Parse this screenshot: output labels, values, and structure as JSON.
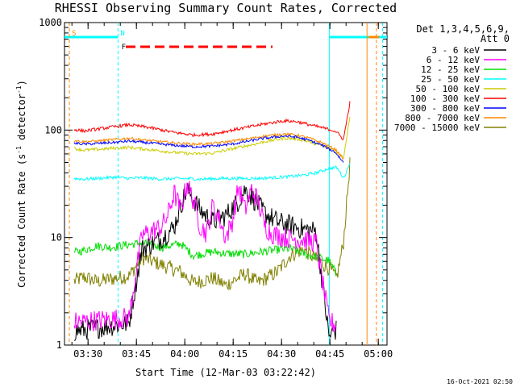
{
  "chart_data": {
    "type": "line",
    "title": "RHESSI Observing Summary Count Rates, Corrected",
    "xlabel": "Start Time (12-Mar-03 03:22:42)",
    "ylabel_main": "Corrected Count Rate (s",
    "ylabel_sup1": "-1",
    "ylabel_mid": " detector",
    "ylabel_sup2": "-1",
    "ylabel_end": ")",
    "x_unit": "minutes since 03:22:42",
    "xlim": [
      0,
      100
    ],
    "ylim": [
      1,
      1000
    ],
    "yscale": "log",
    "x_ticks": [
      {
        "x": 7.3,
        "label": "03:30"
      },
      {
        "x": 22.3,
        "label": "03:45"
      },
      {
        "x": 37.3,
        "label": "04:00"
      },
      {
        "x": 52.3,
        "label": "04:15"
      },
      {
        "x": 67.3,
        "label": "04:30"
      },
      {
        "x": 82.3,
        "label": "04:45"
      },
      {
        "x": 97.3,
        "label": "05:00"
      }
    ],
    "y_ticks": [
      {
        "y": 1,
        "label": "1"
      },
      {
        "y": 10,
        "label": "10"
      },
      {
        "y": 100,
        "label": "100"
      },
      {
        "y": 1000,
        "label": "1000"
      }
    ],
    "legend": {
      "header1": "Det 1,3,4,5,6,9,",
      "header2": "Att 0",
      "placement": "right"
    },
    "series": [
      {
        "name": "3 - 6 keV",
        "color": "#000000",
        "x": [
          0,
          20,
          24,
          30,
          34,
          36,
          38,
          40,
          42,
          46,
          50,
          54,
          56,
          58,
          62,
          66,
          70,
          74,
          78,
          82,
          84.4
        ],
        "y": [
          1.3,
          1.6,
          7.8,
          9.8,
          12.5,
          20,
          28,
          23,
          18,
          14,
          16,
          22,
          28,
          24,
          17,
          14,
          13,
          12,
          11.5,
          1.2,
          1.4
        ]
      },
      {
        "name": "6 - 12 keV",
        "color": "#ff00ff",
        "x": [
          0,
          20,
          24,
          30,
          32,
          34,
          36,
          38,
          40,
          42,
          44,
          46,
          48,
          50,
          52,
          54,
          56,
          58,
          60,
          62,
          64,
          66,
          70,
          74,
          78,
          82,
          84.4
        ],
        "y": [
          1.6,
          1.8,
          10.5,
          12.5,
          16,
          26,
          18,
          32,
          22,
          13,
          11,
          20,
          15,
          10,
          14,
          30,
          18,
          28,
          22,
          13,
          11,
          10.5,
          9.8,
          9.6,
          9,
          1.7,
          1.5
        ]
      },
      {
        "name": "12 - 25 keV",
        "color": "#00dd00",
        "x": [
          0,
          6,
          10,
          14,
          20,
          24,
          30,
          36,
          40,
          46,
          50,
          56,
          60,
          66,
          70,
          74,
          78,
          82,
          84.4
        ],
        "y": [
          7,
          7.6,
          8.4,
          8.1,
          8.6,
          8.9,
          8.1,
          8.8,
          6.8,
          7.4,
          7.1,
          7,
          7.3,
          7.7,
          7.9,
          7.1,
          6.6,
          6.1,
          4.5
        ]
      },
      {
        "name": "25 - 50 keV",
        "color": "#00ffff",
        "x": [
          0,
          6,
          10,
          16,
          20,
          24,
          30,
          36,
          42,
          50,
          56,
          60,
          64,
          70,
          74,
          78,
          82,
          84.4,
          86.5,
          87.6,
          88.6
        ],
        "y": [
          36,
          35,
          35.5,
          36.5,
          35.5,
          36,
          35,
          35.5,
          35,
          35.5,
          35.5,
          35.5,
          36,
          37,
          38,
          40,
          44,
          45,
          36,
          42,
          52
        ]
      },
      {
        "name": "50 - 100 keV",
        "color": "#cccc00",
        "x": [
          0,
          6,
          10,
          16,
          20,
          26,
          34,
          40,
          46,
          52,
          58,
          62,
          68,
          72,
          76,
          80,
          84,
          86.5,
          88.6
        ],
        "y": [
          70,
          65,
          66,
          68,
          69,
          66,
          62,
          60,
          61,
          67,
          73,
          78,
          84,
          83,
          78,
          71,
          65,
          55,
          142
        ]
      },
      {
        "name": "100 - 300 keV",
        "color": "#ff0000",
        "x": [
          0,
          6,
          10,
          16,
          20,
          26,
          34,
          40,
          46,
          52,
          58,
          62,
          68,
          72,
          76,
          80,
          84,
          86.5,
          88.6
        ],
        "y": [
          105,
          98,
          102,
          108,
          112,
          106,
          95,
          90,
          92,
          100,
          108,
          114,
          122,
          120,
          112,
          105,
          98,
          82,
          188
        ]
      },
      {
        "name": "300 - 800 keV",
        "color": "#0000ff",
        "x": [
          0,
          6,
          10,
          16,
          20,
          26,
          34,
          40,
          46,
          52,
          58,
          62,
          68,
          72,
          76,
          80,
          84,
          86.5
        ],
        "y": [
          77,
          74,
          75,
          77,
          79,
          76,
          72,
          70,
          71,
          74,
          80,
          84,
          88,
          86,
          80,
          72,
          62,
          50
        ]
      },
      {
        "name": "800 - 7000 keV",
        "color": "#ff8800",
        "x": [
          0,
          6,
          10,
          16,
          20,
          26,
          34,
          40,
          46,
          52,
          58,
          62,
          68,
          72,
          76,
          80,
          84,
          86.5
        ],
        "y": [
          82,
          78,
          79,
          82,
          84,
          80,
          76,
          74,
          75,
          79,
          84,
          88,
          92,
          90,
          84,
          76,
          66,
          54
        ]
      },
      {
        "name": "7000 - 15000 keV",
        "color": "#808000",
        "x": [
          0,
          6,
          10,
          16,
          20,
          24,
          30,
          36,
          40,
          46,
          50,
          56,
          60,
          66,
          70,
          74,
          78,
          82,
          84.4,
          86.5,
          88.6
        ],
        "y": [
          3.6,
          4.3,
          3.9,
          4.2,
          4.4,
          6.5,
          5.6,
          4.8,
          3.8,
          4.2,
          3.6,
          4.6,
          3.8,
          4.8,
          6.8,
          7.8,
          6.3,
          5.2,
          4.2,
          9,
          53
        ]
      }
    ],
    "segments": [
      {
        "name": "night-left",
        "color": "#00ffff",
        "x_start": 0,
        "x_end": 16.6
      },
      {
        "name": "night-right",
        "color": "#00ffff",
        "x_start": 82.1,
        "x_end": 100
      },
      {
        "name": "saa-right",
        "color": "#ff8800",
        "x_start": 94.3,
        "x_end": 97.5
      },
      {
        "name": "flare-bar",
        "color": "#ff0000",
        "x_start": 19,
        "x_end": 64.5
      }
    ],
    "markers": [
      {
        "name": "saa-start",
        "color": "#ff8800",
        "x": 1.5,
        "style": "dashed",
        "label": "S"
      },
      {
        "name": "night-start",
        "color": "#00ffff",
        "x": 16.6,
        "style": "dashed",
        "label": "N"
      },
      {
        "name": "flare-start",
        "color": "#ff0000",
        "x": 16.9,
        "style": "none",
        "label": "F"
      },
      {
        "name": "night-end",
        "color": "#00ffff",
        "x": 82.1,
        "style": "solid",
        "label": ""
      },
      {
        "name": "saa-edge",
        "color": "#ff8800",
        "x": 93.8,
        "style": "solid",
        "label": ""
      },
      {
        "name": "saa-end",
        "color": "#ff8800",
        "x": 96.7,
        "style": "dashed",
        "label": ""
      },
      {
        "name": "night-end-2",
        "color": "#00ffff",
        "x": 98.6,
        "style": "dashed",
        "label": ""
      }
    ]
  },
  "footer": {
    "timestamp": "16-Oct-2021 02:50"
  }
}
